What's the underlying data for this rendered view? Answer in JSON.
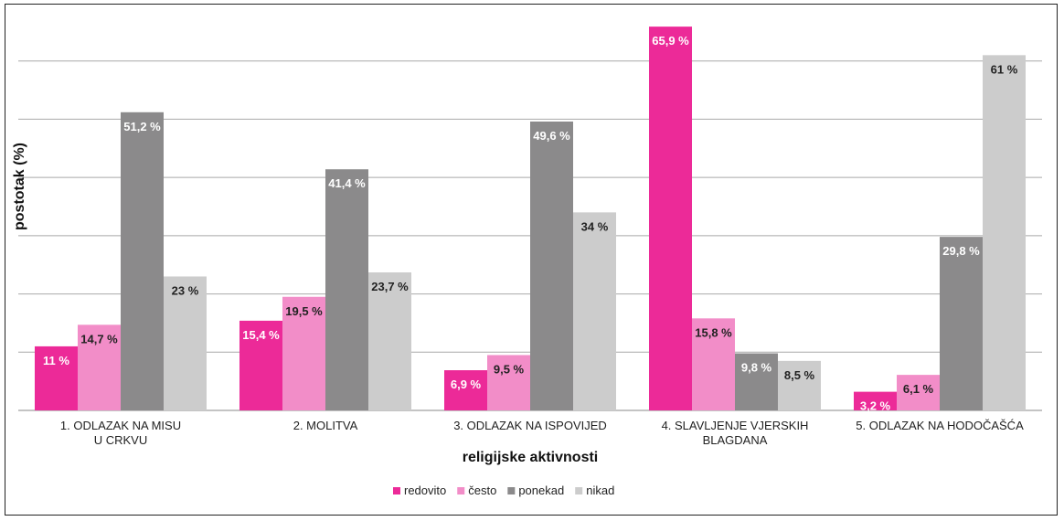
{
  "chart_data": {
    "type": "bar",
    "xlabel": "religijske aktivnosti",
    "ylabel": "postotak (%)",
    "ylim": [
      0,
      70
    ],
    "grid": true,
    "legend_position": "bottom",
    "categories": [
      [
        "1. ODLAZAK NA MISU",
        "U CRKVU"
      ],
      [
        "2. MOLITVA"
      ],
      [
        "3. ODLAZAK NA ISPOVIJED"
      ],
      [
        "4. SLAVLJENJE VJERSKIH",
        "BLAGDANA"
      ],
      [
        "5. ODLAZAK NA HODOČAŠĆA"
      ]
    ],
    "series": [
      {
        "name": "redovito",
        "color": "#ec2a98",
        "label_color": "#ffffff",
        "values": [
          11,
          15.4,
          6.9,
          65.9,
          3.2
        ],
        "labels": [
          "11 %",
          "15,4 %",
          "6,9 %",
          "65,9 %",
          "3,2 %"
        ]
      },
      {
        "name": "često",
        "color": "#f28dc8",
        "label_color": "#222222",
        "values": [
          14.7,
          19.5,
          9.5,
          15.8,
          6.1
        ],
        "labels": [
          "14,7 %",
          "19,5 %",
          "9,5 %",
          "15,8 %",
          "6,1 %"
        ]
      },
      {
        "name": "ponekad",
        "color": "#8b8a8b",
        "label_color": "#ffffff",
        "values": [
          51.2,
          41.4,
          49.6,
          9.8,
          29.8
        ],
        "labels": [
          "51,2 %",
          "41,4 %",
          "49,6 %",
          "9,8 %",
          "29,8 %"
        ]
      },
      {
        "name": "nikad",
        "color": "#cccccc",
        "label_color": "#222222",
        "values": [
          23,
          23.7,
          34,
          8.5,
          61
        ],
        "labels": [
          "23 %",
          "23,7 %",
          "34 %",
          "8,5 %",
          "61 %"
        ]
      }
    ]
  }
}
